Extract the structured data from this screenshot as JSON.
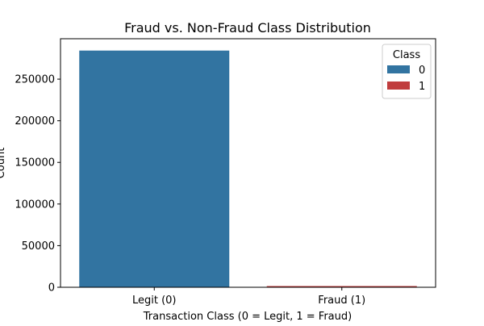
{
  "chart_data": {
    "type": "bar",
    "title": "Fraud vs. Non-Fraud Class Distribution",
    "xlabel": "Transaction Class (0 = Legit, 1 = Fraud)",
    "ylabel": "Count",
    "categories": [
      "Legit (0)",
      "Fraud (1)"
    ],
    "series": [
      {
        "name": "0",
        "color": "#3274a1",
        "values": [
          284315,
          0
        ]
      },
      {
        "name": "1",
        "color": "#c03d3e",
        "values": [
          0,
          492
        ]
      }
    ],
    "ylim": [
      0,
      298530
    ],
    "yticks": [
      0,
      50000,
      100000,
      150000,
      200000,
      250000
    ],
    "ytick_labels": [
      "0",
      "50000",
      "100000",
      "150000",
      "200000",
      "250000"
    ],
    "grid": false,
    "legend": {
      "title": "Class",
      "placement": "top-right",
      "entries": [
        "0",
        "1"
      ]
    }
  }
}
